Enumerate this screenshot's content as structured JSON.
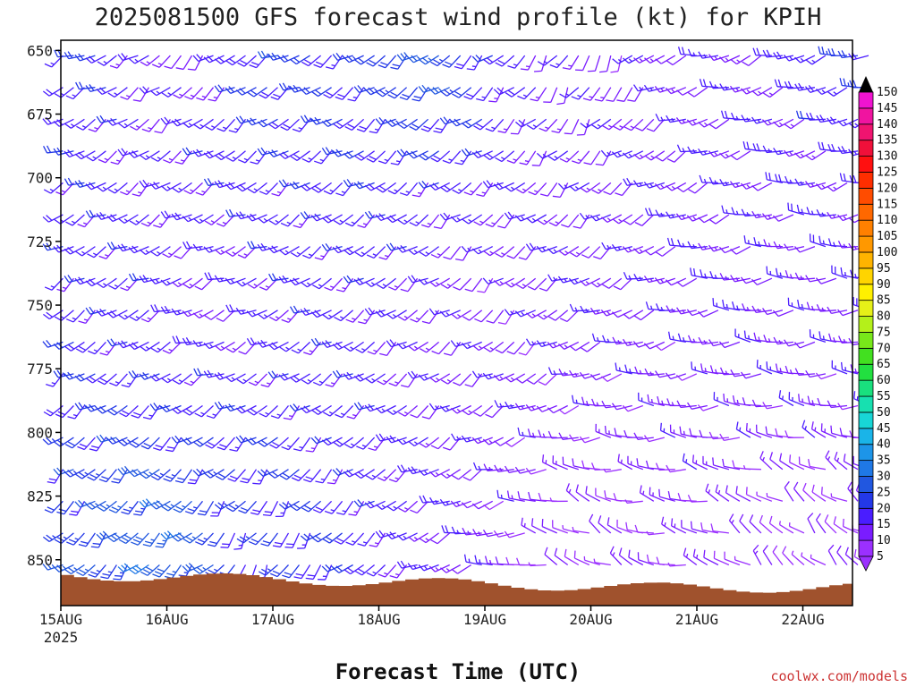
{
  "chart_data": {
    "type": "wind_barb_profile",
    "title": "2025081500 GFS forecast wind profile (kt) for KPIH",
    "xlabel": "Forecast Time (UTC)",
    "ylabel": "",
    "credit": "coolwx.com/models",
    "y_axis": {
      "ticks": [
        650,
        675,
        700,
        725,
        750,
        775,
        800,
        825,
        850
      ],
      "range": [
        646,
        868
      ],
      "unit": "hPa"
    },
    "x_axis": {
      "ticks": [
        "15AUG",
        "16AUG",
        "17AUG",
        "18AUG",
        "19AUG",
        "20AUG",
        "21AUG",
        "22AUG"
      ],
      "year_label": "2025",
      "range_days": [
        0,
        7.75
      ]
    },
    "colorbar": {
      "values": [
        5,
        10,
        15,
        20,
        25,
        30,
        35,
        40,
        45,
        50,
        55,
        60,
        65,
        70,
        75,
        80,
        85,
        90,
        95,
        100,
        105,
        110,
        115,
        120,
        125,
        130,
        135,
        140,
        145,
        150
      ],
      "colors": [
        "#9b30ff",
        "#7a1cff",
        "#4a1dff",
        "#2338e8",
        "#2157e0",
        "#1f78e6",
        "#1d95e8",
        "#1ab4e8",
        "#18d6d6",
        "#17e0b0",
        "#19e07e",
        "#22e040",
        "#42e020",
        "#78e81a",
        "#b4f01a",
        "#e6f018",
        "#fff000",
        "#ffd400",
        "#ffb400",
        "#ff9800",
        "#ff8000",
        "#ff6800",
        "#ff4c00",
        "#ff2e00",
        "#ff1010",
        "#f0103a",
        "#f01470",
        "#f014a0",
        "#f014d0",
        "#e810f0"
      ]
    },
    "wind_samples": [
      {
        "day": 0.3,
        "hPa": 650,
        "dir_deg": 250,
        "speed_kt": 20
      },
      {
        "day": 1.0,
        "hPa": 650,
        "dir_deg": 220,
        "speed_kt": 12
      },
      {
        "day": 2.0,
        "hPa": 650,
        "dir_deg": 240,
        "speed_kt": 22
      },
      {
        "day": 3.5,
        "hPa": 650,
        "dir_deg": 230,
        "speed_kt": 25
      },
      {
        "day": 5.0,
        "hPa": 650,
        "dir_deg": 200,
        "speed_kt": 12
      },
      {
        "day": 6.0,
        "hPa": 650,
        "dir_deg": 255,
        "speed_kt": 14
      },
      {
        "day": 7.5,
        "hPa": 650,
        "dir_deg": 255,
        "speed_kt": 20
      },
      {
        "day": 1.5,
        "hPa": 750,
        "dir_deg": 250,
        "speed_kt": 14
      },
      {
        "day": 4.0,
        "hPa": 750,
        "dir_deg": 230,
        "speed_kt": 12
      },
      {
        "day": 7.0,
        "hPa": 750,
        "dir_deg": 270,
        "speed_kt": 14
      },
      {
        "day": 1.0,
        "hPa": 850,
        "dir_deg": 225,
        "speed_kt": 30
      },
      {
        "day": 2.0,
        "hPa": 850,
        "dir_deg": 210,
        "speed_kt": 20
      },
      {
        "day": 5.0,
        "hPa": 850,
        "dir_deg": 300,
        "speed_kt": 8
      },
      {
        "day": 7.0,
        "hPa": 850,
        "dir_deg": 320,
        "speed_kt": 8
      }
    ],
    "terrain_color": "#a0522d"
  }
}
